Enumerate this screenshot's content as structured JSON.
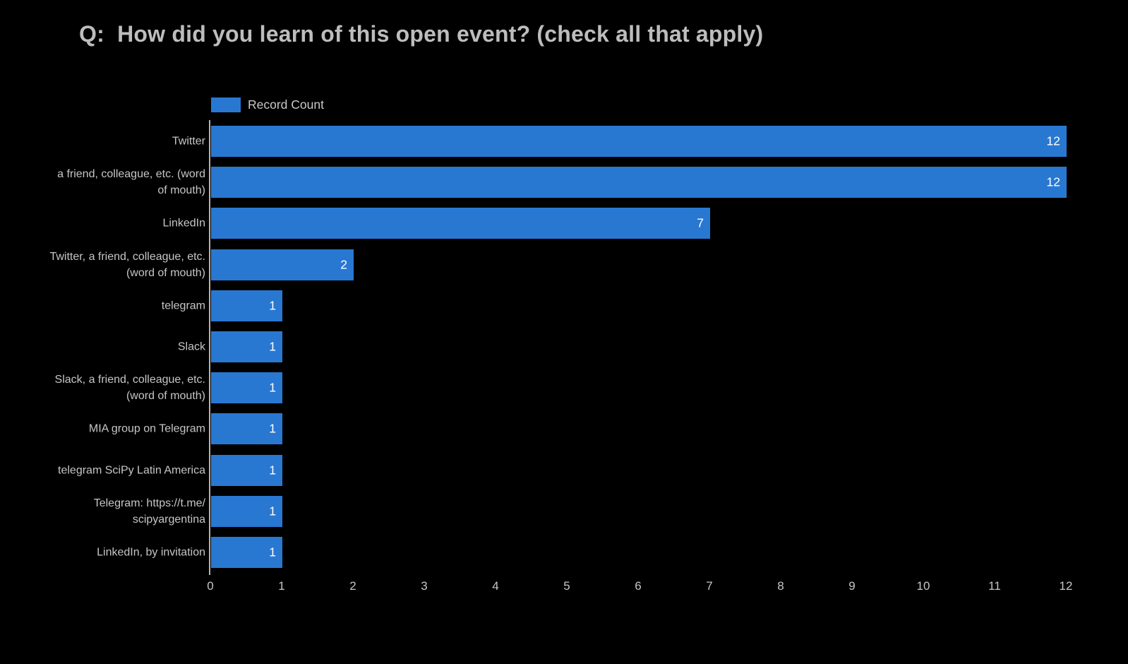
{
  "title": "Q:  How did you learn of this open event? (check all that apply)",
  "legend": {
    "label": "Record Count",
    "swatch_color": "#2878d2",
    "position": "top-left"
  },
  "colors": {
    "background": "#000000",
    "bar": "#2878d2",
    "title_text": "#bdbdbd",
    "axis_text": "#c6c6c6",
    "value_label_text": "#ffffff",
    "axis_line": "#b2b2b2"
  },
  "chart_data": {
    "type": "bar",
    "orientation": "horizontal",
    "title": "Q:  How did you learn of this open event? (check all that apply)",
    "series": [
      {
        "name": "Record Count",
        "values": [
          12,
          12,
          7,
          2,
          1,
          1,
          1,
          1,
          1,
          1,
          1
        ]
      }
    ],
    "categories": [
      "Twitter",
      "a friend, colleague, etc. (word of mouth)",
      "LinkedIn",
      "Twitter, a friend, colleague, etc. (word of mouth)",
      "telegram",
      "Slack",
      "Slack, a friend, colleague, etc. (word of mouth)",
      "MIA group on Telegram",
      "telegram SciPy Latin America",
      "Telegram: https://t.me/scipyargentina",
      "LinkedIn, by invitation"
    ],
    "category_display_lines": [
      [
        "Twitter"
      ],
      [
        "a friend, colleague, etc. (word",
        "of mouth)"
      ],
      [
        "LinkedIn"
      ],
      [
        "Twitter, a friend, colleague, etc.",
        "(word of mouth)"
      ],
      [
        "telegram"
      ],
      [
        "Slack"
      ],
      [
        "Slack, a friend, colleague, etc.",
        "(word of mouth)"
      ],
      [
        "MIA group on Telegram"
      ],
      [
        "telegram SciPy Latin America"
      ],
      [
        "Telegram: https://t.me/",
        "scipyargentina"
      ],
      [
        "LinkedIn, by invitation"
      ]
    ],
    "value_labels": [
      "12",
      "12",
      "7",
      "2",
      "1",
      "1",
      "1",
      "1",
      "1",
      "1",
      "1"
    ],
    "xlabel": "",
    "ylabel": "",
    "xlim": [
      0,
      12
    ],
    "xticks": [
      "0",
      "1",
      "2",
      "3",
      "4",
      "5",
      "6",
      "7",
      "8",
      "9",
      "10",
      "11",
      "12"
    ],
    "grid": false,
    "legend_position": "top-left",
    "bar_color": "#2878d2"
  }
}
